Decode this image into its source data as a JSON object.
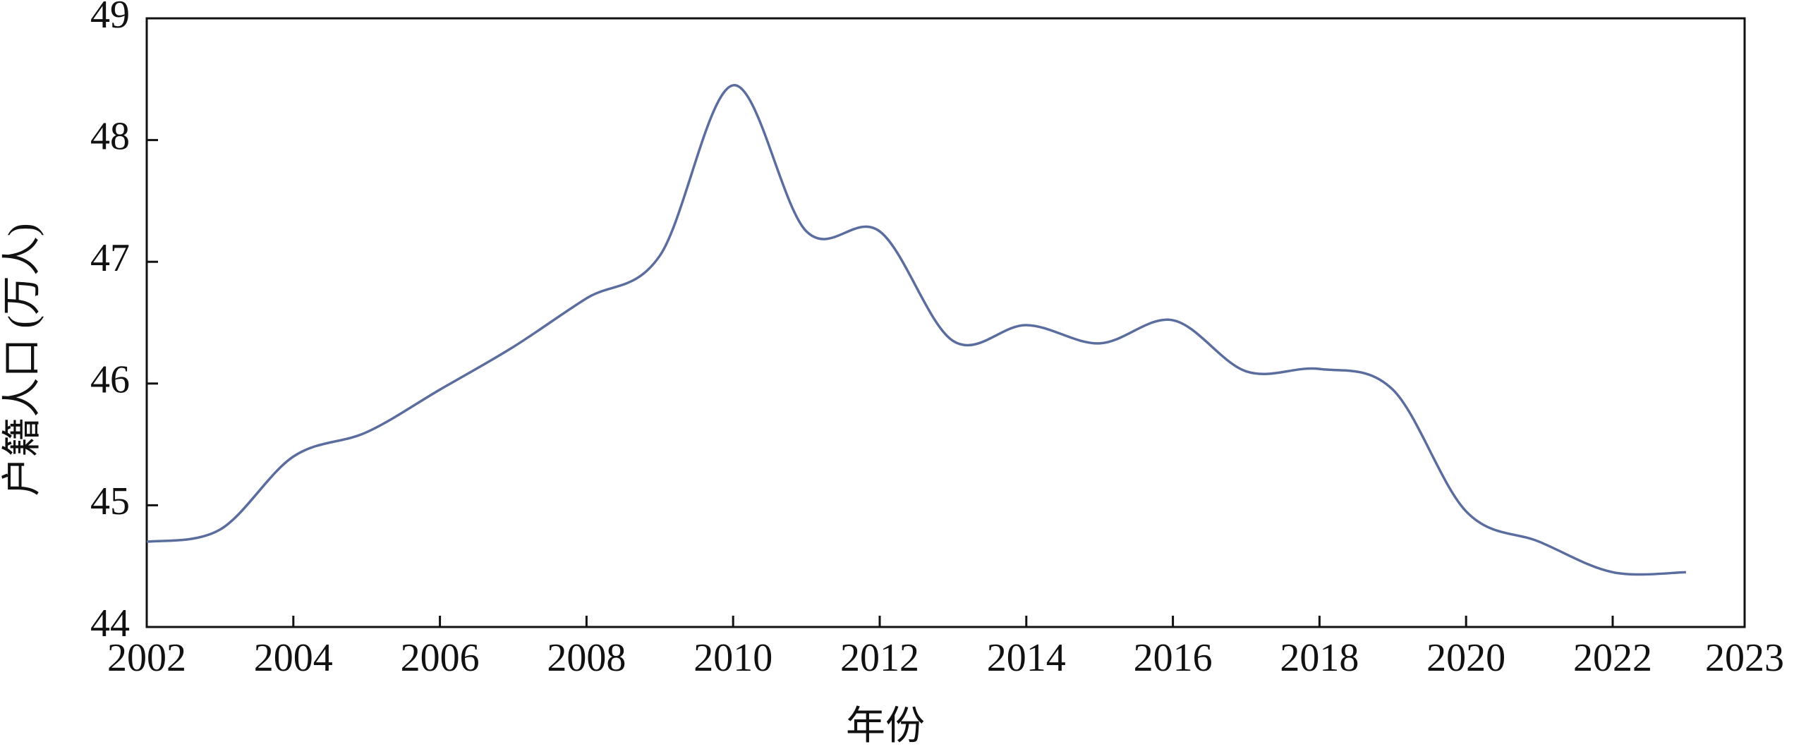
{
  "chart_data": {
    "type": "line",
    "x_label": "年份",
    "y_label": "户籍人口 (万人)",
    "x": [
      2002,
      2003,
      2004,
      2005,
      2006,
      2007,
      2008,
      2009,
      2010,
      2011,
      2012,
      2013,
      2014,
      2015,
      2016,
      2017,
      2018,
      2019,
      2020,
      2021,
      2022,
      2023
    ],
    "series": [
      {
        "color": "#5a6d9e",
        "values": [
          44.7,
          44.8,
          45.4,
          45.6,
          45.95,
          46.3,
          46.7,
          47.05,
          48.45,
          47.25,
          47.25,
          46.35,
          46.48,
          46.33,
          46.52,
          46.1,
          46.12,
          45.95,
          44.95,
          44.7,
          44.45,
          44.45
        ]
      }
    ],
    "xlim": [
      2002,
      2023.8
    ],
    "xticks": [
      2002,
      2004,
      2006,
      2008,
      2010,
      2012,
      2014,
      2016,
      2018,
      2020,
      2022,
      {
        "value": 2023.8,
        "label": "2023"
      }
    ],
    "ylim": [
      44,
      49
    ],
    "yticks": [
      44,
      45,
      46,
      47,
      48,
      49
    ],
    "grid": false
  }
}
